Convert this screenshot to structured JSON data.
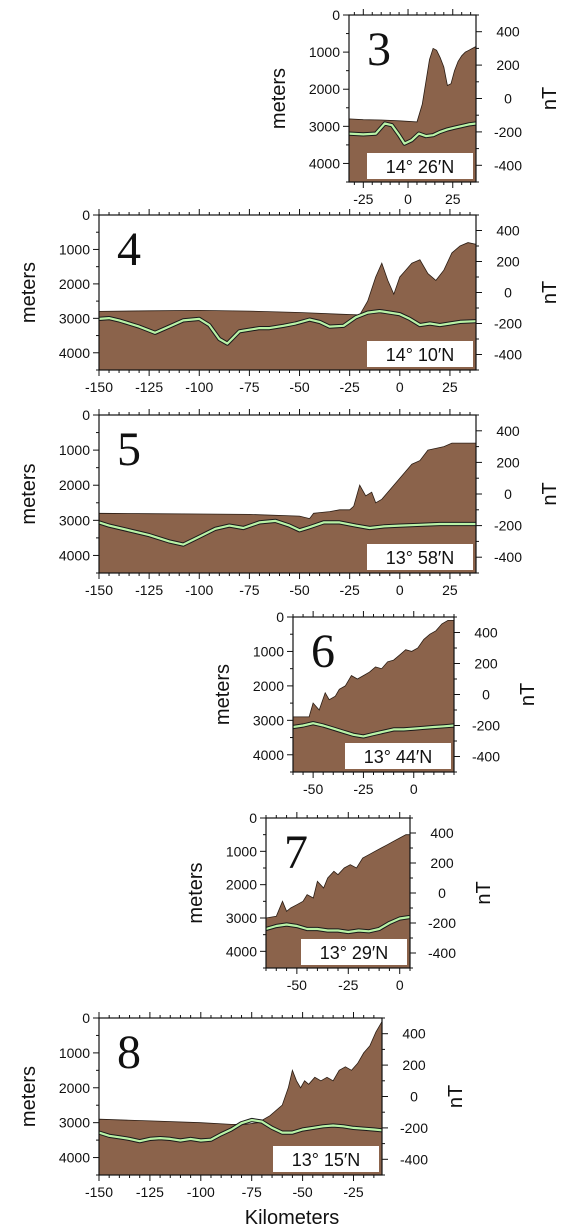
{
  "colors": {
    "terrain_fill": "#8B634B",
    "magnetic_line": "#B9F2A6",
    "magnetic_outline": "#1a1a1a",
    "axis": "#111111",
    "label_box": "#ffffff"
  },
  "figure": {
    "x_axis_title": "Kilometers"
  },
  "chart_data": [
    {
      "type": "area",
      "panel_number": "3",
      "latitude_label": "14° 26′N",
      "left_axis_title": "meters",
      "right_axis_title": "nT",
      "x_ticks": [
        -25,
        0,
        25
      ],
      "depth_ticks": [
        0,
        1000,
        2000,
        3000,
        4000
      ],
      "mag_ticks": [
        400,
        200,
        0,
        -200,
        -400
      ],
      "xlim": [
        -33,
        38
      ],
      "depth_lim": [
        0,
        4500
      ],
      "mag_lim": [
        -500,
        500
      ],
      "bathymetry": {
        "x": [
          -33,
          -25,
          -15,
          -5,
          5,
          8,
          10,
          12,
          14,
          16,
          18,
          20,
          22,
          24,
          26,
          28,
          30,
          32,
          34,
          36,
          38
        ],
        "depth": [
          2800,
          2820,
          2830,
          2850,
          2880,
          2400,
          1800,
          1200,
          900,
          950,
          1150,
          1400,
          1900,
          1850,
          1500,
          1250,
          1100,
          1000,
          950,
          900,
          850
        ]
      },
      "magnetic": {
        "x": [
          -33,
          -25,
          -18,
          -13,
          -9,
          -5,
          -2,
          2,
          6,
          10,
          14,
          18,
          22,
          26,
          30,
          34,
          38
        ],
        "nT": [
          -210,
          -215,
          -210,
          -150,
          -160,
          -220,
          -270,
          -250,
          -210,
          -225,
          -220,
          -200,
          -185,
          -175,
          -165,
          -155,
          -150
        ]
      }
    },
    {
      "type": "area",
      "panel_number": "4",
      "latitude_label": "14° 10′N",
      "left_axis_title": "meters",
      "right_axis_title": "nT",
      "x_ticks": [
        -150,
        -125,
        -100,
        -75,
        -50,
        -25,
        0,
        25
      ],
      "depth_ticks": [
        0,
        1000,
        2000,
        3000,
        4000
      ],
      "mag_ticks": [
        400,
        200,
        0,
        -200,
        -400
      ],
      "xlim": [
        -150,
        38
      ],
      "depth_lim": [
        0,
        4500
      ],
      "mag_lim": [
        -500,
        500
      ],
      "bathymetry": {
        "x": [
          -150,
          -125,
          -100,
          -75,
          -50,
          -30,
          -20,
          -16,
          -12,
          -9,
          -6,
          -3,
          0,
          3,
          6,
          10,
          14,
          18,
          22,
          26,
          30,
          34,
          38
        ],
        "depth": [
          2800,
          2780,
          2770,
          2790,
          2830,
          2880,
          2900,
          2500,
          1800,
          1400,
          1900,
          2300,
          1800,
          1600,
          1400,
          1300,
          1700,
          1900,
          1600,
          1100,
          900,
          800,
          850
        ]
      },
      "magnetic": {
        "x": [
          -150,
          -145,
          -140,
          -130,
          -122,
          -115,
          -108,
          -100,
          -95,
          -90,
          -86,
          -80,
          -75,
          -70,
          -65,
          -58,
          -52,
          -45,
          -40,
          -35,
          -28,
          -22,
          -16,
          -10,
          -5,
          0,
          5,
          10,
          15,
          20,
          25,
          30,
          38
        ],
        "nT": [
          -170,
          -165,
          -180,
          -220,
          -260,
          -220,
          -180,
          -170,
          -210,
          -300,
          -330,
          -250,
          -240,
          -230,
          -230,
          -215,
          -200,
          -175,
          -190,
          -220,
          -215,
          -160,
          -130,
          -120,
          -130,
          -140,
          -170,
          -210,
          -200,
          -210,
          -200,
          -190,
          -185
        ]
      }
    },
    {
      "type": "area",
      "panel_number": "5",
      "latitude_label": "13° 58′N",
      "left_axis_title": "meters",
      "right_axis_title": "nT",
      "x_ticks": [
        -150,
        -125,
        -100,
        -75,
        -50,
        -25,
        0,
        25
      ],
      "depth_ticks": [
        0,
        1000,
        2000,
        3000,
        4000
      ],
      "mag_ticks": [
        400,
        200,
        0,
        -200,
        -400
      ],
      "xlim": [
        -150,
        38
      ],
      "depth_lim": [
        0,
        4500
      ],
      "mag_lim": [
        -500,
        500
      ],
      "bathymetry": {
        "x": [
          -150,
          -125,
          -100,
          -75,
          -50,
          -45,
          -43,
          -40,
          -35,
          -30,
          -25,
          -23,
          -20,
          -17,
          -14,
          -12,
          -9,
          -6,
          -3,
          0,
          3,
          6,
          10,
          14,
          18,
          22,
          26,
          30,
          34,
          38
        ],
        "depth": [
          2800,
          2810,
          2820,
          2830,
          2880,
          2950,
          2800,
          2780,
          2750,
          2700,
          2700,
          2600,
          2000,
          2300,
          2200,
          2500,
          2400,
          2200,
          2000,
          1800,
          1600,
          1400,
          1300,
          1000,
          950,
          900,
          800,
          800,
          800,
          800
        ]
      },
      "magnetic": {
        "x": [
          -150,
          -145,
          -135,
          -125,
          -115,
          -108,
          -100,
          -92,
          -85,
          -78,
          -70,
          -62,
          -55,
          -50,
          -45,
          -38,
          -30,
          -22,
          -15,
          -8,
          0,
          10,
          20,
          30,
          38
        ],
        "nT": [
          -180,
          -200,
          -230,
          -260,
          -300,
          -320,
          -270,
          -220,
          -200,
          -215,
          -180,
          -170,
          -200,
          -230,
          -210,
          -180,
          -180,
          -200,
          -215,
          -205,
          -200,
          -195,
          -190,
          -190,
          -190
        ]
      }
    },
    {
      "type": "area",
      "panel_number": "6",
      "latitude_label": "13° 44′N",
      "left_axis_title": "meters",
      "right_axis_title": "nT",
      "x_ticks": [
        -50,
        -25,
        0
      ],
      "depth_ticks": [
        0,
        1000,
        2000,
        3000,
        4000
      ],
      "mag_ticks": [
        400,
        200,
        0,
        -200,
        -400
      ],
      "xlim": [
        -60,
        20
      ],
      "depth_lim": [
        0,
        4500
      ],
      "mag_lim": [
        -500,
        500
      ],
      "bathymetry": {
        "x": [
          -60,
          -52,
          -50,
          -47,
          -44,
          -42,
          -39,
          -37,
          -34,
          -31,
          -28,
          -25,
          -22,
          -19,
          -16,
          -13,
          -10,
          -7,
          -4,
          -1,
          2,
          5,
          8,
          11,
          14,
          17,
          20
        ],
        "depth": [
          2900,
          2900,
          2500,
          2700,
          2200,
          2400,
          2300,
          2100,
          2000,
          1700,
          1800,
          1700,
          1600,
          1450,
          1500,
          1300,
          1250,
          1100,
          950,
          1000,
          900,
          650,
          500,
          400,
          200,
          100,
          100
        ]
      },
      "magnetic": {
        "x": [
          -60,
          -55,
          -50,
          -45,
          -40,
          -35,
          -30,
          -25,
          -20,
          -15,
          -10,
          -5,
          0,
          5,
          10,
          15,
          20
        ],
        "nT": [
          -210,
          -200,
          -185,
          -200,
          -220,
          -240,
          -260,
          -270,
          -255,
          -240,
          -225,
          -225,
          -220,
          -215,
          -210,
          -205,
          -200
        ]
      }
    },
    {
      "type": "area",
      "panel_number": "7",
      "latitude_label": "13° 29′N",
      "left_axis_title": "meters",
      "right_axis_title": "nT",
      "x_ticks": [
        -50,
        -25,
        0
      ],
      "depth_ticks": [
        0,
        1000,
        2000,
        3000,
        4000
      ],
      "mag_ticks": [
        400,
        200,
        0,
        -200,
        -400
      ],
      "xlim": [
        -65,
        5
      ],
      "depth_lim": [
        0,
        4500
      ],
      "mag_lim": [
        -500,
        500
      ],
      "bathymetry": {
        "x": [
          -65,
          -60,
          -57,
          -55,
          -53,
          -50,
          -47,
          -45,
          -42,
          -40,
          -37,
          -35,
          -32,
          -30,
          -27,
          -24,
          -21,
          -18,
          -15,
          -12,
          -9,
          -6,
          -3,
          0,
          3,
          5
        ],
        "depth": [
          3000,
          2950,
          2500,
          2800,
          2700,
          2600,
          2500,
          2300,
          2400,
          1900,
          2100,
          1800,
          1600,
          1700,
          1500,
          1400,
          1500,
          1200,
          1100,
          1000,
          900,
          800,
          700,
          600,
          500,
          500
        ]
      },
      "magnetic": {
        "x": [
          -65,
          -60,
          -55,
          -50,
          -45,
          -40,
          -35,
          -30,
          -25,
          -20,
          -15,
          -10,
          -5,
          0,
          5
        ],
        "nT": [
          -240,
          -220,
          -210,
          -220,
          -240,
          -240,
          -250,
          -250,
          -260,
          -250,
          -255,
          -240,
          -200,
          -170,
          -160
        ]
      }
    },
    {
      "type": "area",
      "panel_number": "8",
      "latitude_label": "13° 15′N",
      "left_axis_title": "meters",
      "right_axis_title": "nT",
      "x_ticks": [
        -150,
        -125,
        -100,
        -75,
        -50,
        -25
      ],
      "depth_ticks": [
        0,
        1000,
        2000,
        3000,
        4000
      ],
      "mag_ticks": [
        400,
        200,
        0,
        -200,
        -400
      ],
      "xlim": [
        -150,
        -11
      ],
      "depth_lim": [
        0,
        4500
      ],
      "mag_lim": [
        -500,
        500
      ],
      "bathymetry": {
        "x": [
          -150,
          -125,
          -100,
          -85,
          -78,
          -72,
          -66,
          -60,
          -57,
          -55,
          -53,
          -51,
          -49,
          -47,
          -44,
          -41,
          -38,
          -35,
          -32,
          -29,
          -26,
          -23,
          -20,
          -17,
          -14,
          -11
        ],
        "depth": [
          2900,
          2950,
          3000,
          3050,
          3050,
          3000,
          2800,
          2500,
          2000,
          1500,
          1800,
          2000,
          1800,
          1900,
          1700,
          1800,
          1700,
          1800,
          1500,
          1400,
          1500,
          1300,
          1000,
          800,
          400,
          100
        ]
      },
      "magnetic": {
        "x": [
          -150,
          -145,
          -140,
          -135,
          -130,
          -125,
          -120,
          -115,
          -110,
          -105,
          -100,
          -95,
          -90,
          -85,
          -80,
          -75,
          -70,
          -65,
          -60,
          -55,
          -50,
          -45,
          -40,
          -35,
          -30,
          -25,
          -20,
          -15,
          -11
        ],
        "nT": [
          -230,
          -250,
          -260,
          -270,
          -285,
          -270,
          -265,
          -270,
          -280,
          -270,
          -280,
          -275,
          -240,
          -210,
          -170,
          -150,
          -160,
          -200,
          -230,
          -230,
          -210,
          -200,
          -190,
          -185,
          -190,
          -200,
          -205,
          -210,
          -215
        ]
      }
    }
  ]
}
